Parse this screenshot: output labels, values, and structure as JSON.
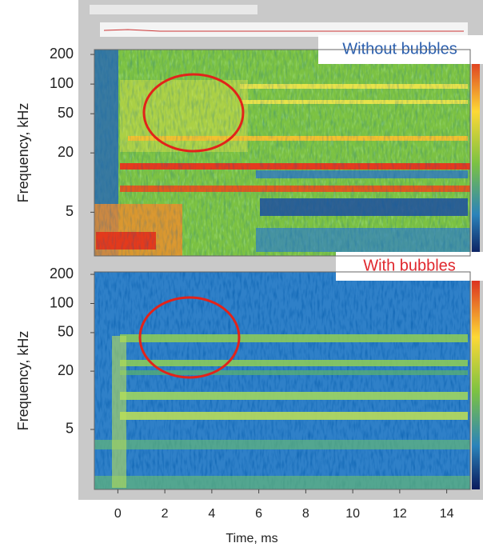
{
  "chart_data": [
    {
      "type": "heatmap",
      "annotation": "Without bubbles",
      "ylabel": "Frequency, kHz",
      "log_y": true,
      "ylim": [
        1.8,
        224
      ],
      "yticks": [
        5,
        20,
        50,
        100,
        200
      ]
    },
    {
      "type": "heatmap",
      "annotation": "With bubbles",
      "ylabel": "Frequency, kHz",
      "log_y": true,
      "ylim": [
        1.2,
        212
      ],
      "yticks": [
        5,
        20,
        50,
        100,
        200
      ],
      "xlabel": "Time, ms",
      "xlim": [
        -1,
        15
      ],
      "xticks": [
        0,
        2,
        4,
        6,
        8,
        10,
        12,
        14
      ]
    }
  ]
}
